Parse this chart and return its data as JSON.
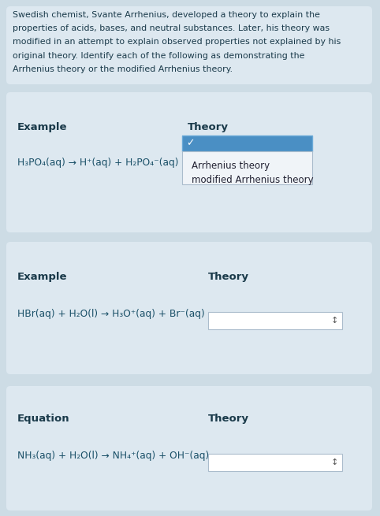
{
  "bg_color": "#cddce5",
  "panel_color": "#dde8f0",
  "text_color": "#1a3a4a",
  "equation_color": "#1a5068",
  "blue_selected": "#4a8fc4",
  "blue_border": "#6aaad8",
  "dropdown_bg": "#f0f4f8",
  "dropdown_border": "#aabccc",
  "select_box_bg": "#ffffff",
  "select_box_border": "#aabccc",
  "intro_text_lines": [
    "Swedish chemist, Svante Arrhenius, developed a theory to explain the",
    "properties of acids, bases, and neutral substances. Later, his theory was",
    "modified in an attempt to explain observed properties not explained by his",
    "original theory. Identify each of the following as demonstrating the",
    "Arrhenius theory or the modified Arrhenius theory."
  ],
  "panel1_label1": "Example",
  "panel1_label2": "Theory",
  "panel1_equation": "H₃PO₄(aq) → H⁺(aq) + H₂PO₄⁻(aq)",
  "panel1_check": "✓",
  "panel1_option1": "Arrhenius theory",
  "panel1_option2": "modified Arrhenius theory",
  "panel2_label1": "Example",
  "panel2_label2": "Theory",
  "panel2_equation": "HBr(aq) + H₂O(l) → H₃O⁺(aq) + Br⁻(aq)",
  "panel3_label1": "Equation",
  "panel3_label2": "Theory",
  "panel3_equation": "NH₃(aq) + H₂O(l) → NH₄⁺(aq) + OH⁻(aq)"
}
